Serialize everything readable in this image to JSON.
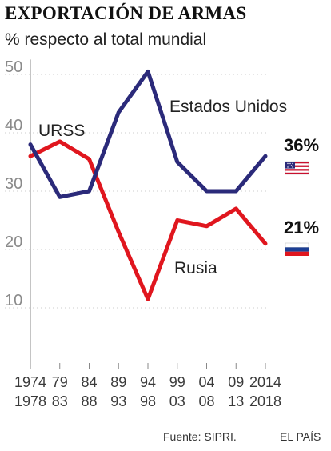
{
  "header": {
    "title": "EXPORTACIÓN DE ARMAS",
    "subtitle": "% respecto al total mundial"
  },
  "footer": {
    "source": "Fuente: SIPRI.",
    "publisher": "EL PAÍS"
  },
  "colors": {
    "usa": "#2b2a7a",
    "russia": "#e0161e",
    "grid": "#cccccc",
    "axis": "#888888"
  },
  "flags": {
    "usa": "us-flag-icon",
    "russia": "russia-flag-icon"
  },
  "chart_data": {
    "type": "line",
    "title": "EXPORTACIÓN DE ARMAS",
    "subtitle": "% respecto al total mundial",
    "xlabel": "",
    "ylabel": "",
    "x_periods": [
      [
        "1974",
        "1978"
      ],
      [
        "79",
        "83"
      ],
      [
        "84",
        "88"
      ],
      [
        "89",
        "93"
      ],
      [
        "94",
        "98"
      ],
      [
        "99",
        "03"
      ],
      [
        "04",
        "08"
      ],
      [
        "09",
        "13"
      ],
      [
        "2014",
        "2018"
      ]
    ],
    "yticks": [
      10,
      20,
      30,
      40,
      50
    ],
    "ylim": [
      0,
      52
    ],
    "grid": true,
    "series": [
      {
        "name": "Estados Unidos",
        "color": "#2b2a7a",
        "values": [
          38,
          29,
          30,
          43.5,
          50.5,
          35,
          30,
          30,
          36
        ],
        "end_label": "36%",
        "flag": "us-flag-icon"
      },
      {
        "name": "URSS / Rusia",
        "label_start": "URSS",
        "label_end": "Rusia",
        "color": "#e0161e",
        "values": [
          36,
          38.5,
          35.5,
          23,
          11.5,
          25,
          24,
          27,
          21
        ],
        "end_label": "21%",
        "flag": "russia-flag-icon"
      }
    ]
  }
}
